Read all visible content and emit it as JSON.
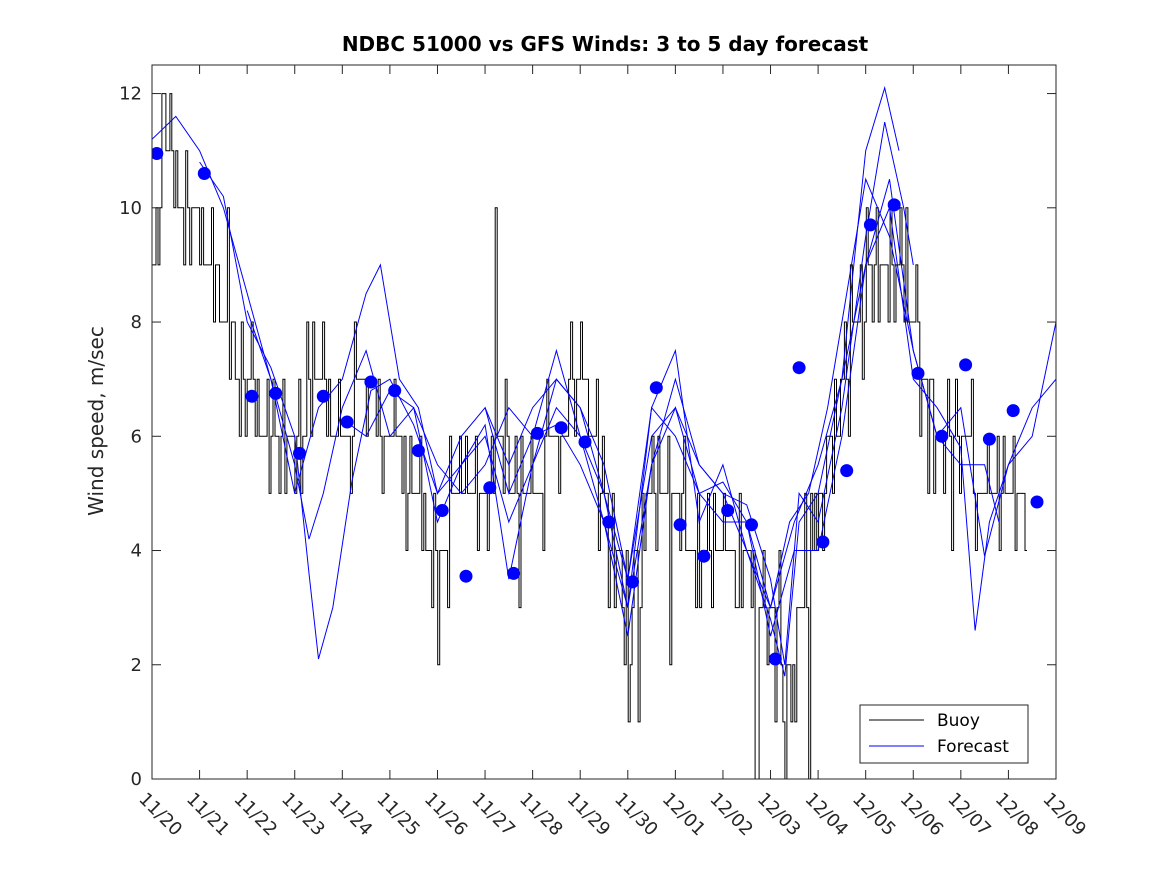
{
  "chart_data": {
    "type": "line",
    "title": "NDBC 51000 vs GFS Winds: 3 to 5 day forecast",
    "xlabel": "",
    "ylabel": "Wind speed, m/sec",
    "xlim": [
      0,
      19
    ],
    "ylim": [
      0,
      12.5
    ],
    "x_tick_labels": [
      "11/20",
      "11/21",
      "11/22",
      "11/23",
      "11/24",
      "11/25",
      "11/26",
      "11/27",
      "11/28",
      "11/29",
      "11/30",
      "12/01",
      "12/02",
      "12/03",
      "12/04",
      "12/05",
      "12/06",
      "12/07",
      "12/08",
      "12/09"
    ],
    "y_ticks": [
      0,
      2,
      4,
      6,
      8,
      10,
      12
    ],
    "legend": {
      "position": "bottom-right",
      "entries": [
        "Buoy",
        "Forecast"
      ]
    },
    "series": [
      {
        "name": "Buoy",
        "color": "#000000",
        "style": "step",
        "x_step": 0.0417,
        "anchors": [
          [
            0.0,
            9
          ],
          [
            0.25,
            11
          ],
          [
            0.8,
            10
          ],
          [
            1.2,
            9
          ],
          [
            1.5,
            8
          ],
          [
            2.0,
            7
          ],
          [
            2.4,
            6
          ],
          [
            3.0,
            6
          ],
          [
            3.5,
            7
          ],
          [
            4.0,
            6
          ],
          [
            4.5,
            7
          ],
          [
            5.0,
            6
          ],
          [
            5.5,
            5
          ],
          [
            6.0,
            4
          ],
          [
            6.5,
            5
          ],
          [
            7.0,
            5
          ],
          [
            7.3,
            6
          ],
          [
            7.7,
            5
          ],
          [
            8.0,
            5
          ],
          [
            8.5,
            6
          ],
          [
            9.0,
            7
          ],
          [
            9.5,
            5
          ],
          [
            10.0,
            3
          ],
          [
            10.5,
            5
          ],
          [
            11.0,
            5
          ],
          [
            11.5,
            4
          ],
          [
            12.0,
            4
          ],
          [
            12.5,
            4
          ],
          [
            13.0,
            3
          ],
          [
            13.4,
            2
          ],
          [
            13.8,
            4
          ],
          [
            14.3,
            6
          ],
          [
            14.8,
            8
          ],
          [
            15.3,
            9
          ],
          [
            15.7,
            9
          ],
          [
            16.0,
            8
          ],
          [
            16.5,
            6
          ],
          [
            17.0,
            6
          ],
          [
            17.5,
            5
          ],
          [
            18.0,
            5
          ],
          [
            18.4,
            5
          ]
        ],
        "spikes": [
          [
            0.25,
            12
          ],
          [
            1.6,
            10
          ],
          [
            6.0,
            2
          ],
          [
            7.2,
            10
          ],
          [
            7.7,
            3
          ],
          [
            9.0,
            8
          ],
          [
            9.6,
            3
          ],
          [
            10.0,
            1
          ],
          [
            10.2,
            1
          ],
          [
            10.9,
            2
          ],
          [
            11.5,
            3
          ],
          [
            12.3,
            3
          ],
          [
            12.7,
            0
          ],
          [
            13.1,
            1
          ],
          [
            13.3,
            0
          ],
          [
            13.5,
            1
          ],
          [
            13.8,
            0
          ],
          [
            15.0,
            10
          ],
          [
            15.5,
            10
          ],
          [
            16.3,
            5
          ],
          [
            16.8,
            4
          ],
          [
            17.8,
            4
          ],
          [
            18.4,
            4
          ]
        ]
      },
      {
        "name": "Forecast",
        "color": "#0000ff",
        "style": "line",
        "members": [
          [
            [
              0,
              11.2
            ],
            [
              0.5,
              11.6
            ],
            [
              1.0,
              11.0
            ],
            [
              1.5,
              10.0
            ],
            [
              2.0,
              8.5
            ],
            [
              2.5,
              7.0
            ],
            [
              3.0,
              5.5
            ],
            [
              3.3,
              4.2
            ],
            [
              3.6,
              5.0
            ],
            [
              4.0,
              6.5
            ],
            [
              4.5,
              7.5
            ],
            [
              5.0,
              6.0
            ],
            [
              5.5,
              6.5
            ],
            [
              6.0,
              4.5
            ],
            [
              6.5,
              5.5
            ],
            [
              7.0,
              6.0
            ],
            [
              7.5,
              4.5
            ],
            [
              8.0,
              5.5
            ],
            [
              8.5,
              7.0
            ],
            [
              9.0,
              6.5
            ],
            [
              9.5,
              5.0
            ],
            [
              10.0,
              3.0
            ],
            [
              10.5,
              5.5
            ],
            [
              11.0,
              7.0
            ],
            [
              11.5,
              5.5
            ],
            [
              12.0,
              5.0
            ],
            [
              12.5,
              4.8
            ],
            [
              13.0,
              3.5
            ],
            [
              13.3,
              2.0
            ],
            [
              13.6,
              5.0
            ],
            [
              14.0,
              4.5
            ],
            [
              14.5,
              6.5
            ],
            [
              15.0,
              9.5
            ],
            [
              15.4,
              11.5
            ],
            [
              15.8,
              10.0
            ],
            [
              16.0,
              9.0
            ]
          ],
          [
            [
              1.0,
              10.8
            ],
            [
              1.5,
              10.2
            ],
            [
              2.0,
              8.0
            ],
            [
              2.5,
              7.2
            ],
            [
              3.0,
              6.0
            ],
            [
              3.3,
              3.6
            ],
            [
              3.5,
              2.1
            ],
            [
              3.8,
              3.0
            ],
            [
              4.2,
              5.2
            ],
            [
              4.6,
              6.8
            ],
            [
              5.0,
              7.0
            ],
            [
              5.5,
              6.2
            ],
            [
              6.0,
              5.0
            ],
            [
              6.5,
              5.5
            ],
            [
              7.0,
              6.2
            ],
            [
              7.5,
              3.5
            ],
            [
              8.0,
              5.5
            ],
            [
              8.5,
              6.5
            ],
            [
              9.0,
              6.0
            ],
            [
              9.5,
              5.0
            ],
            [
              10.0,
              3.5
            ],
            [
              10.5,
              6.5
            ],
            [
              11.0,
              7.5
            ],
            [
              11.5,
              4.5
            ],
            [
              12.0,
              5.5
            ],
            [
              12.5,
              4.0
            ],
            [
              13.0,
              2.8
            ],
            [
              13.3,
              1.8
            ],
            [
              13.6,
              4.5
            ],
            [
              14.0,
              5.0
            ],
            [
              14.5,
              7.0
            ],
            [
              15.0,
              11.0
            ],
            [
              15.4,
              12.1
            ],
            [
              15.7,
              11.0
            ]
          ],
          [
            [
              2.0,
              8.2
            ],
            [
              2.5,
              7.0
            ],
            [
              3.0,
              5.0
            ],
            [
              3.5,
              6.5
            ],
            [
              4.0,
              7.0
            ],
            [
              4.5,
              8.5
            ],
            [
              4.8,
              9.0
            ],
            [
              5.2,
              7.0
            ],
            [
              5.6,
              6.5
            ],
            [
              6.0,
              5.0
            ],
            [
              6.5,
              6.0
            ],
            [
              7.0,
              6.5
            ],
            [
              7.5,
              5.0
            ],
            [
              8.0,
              6.0
            ],
            [
              8.5,
              7.5
            ],
            [
              9.0,
              6.0
            ],
            [
              9.5,
              4.5
            ],
            [
              10.0,
              2.5
            ],
            [
              10.5,
              5.5
            ],
            [
              11.0,
              6.5
            ],
            [
              11.5,
              5.0
            ],
            [
              12.0,
              4.5
            ],
            [
              12.5,
              4.5
            ],
            [
              13.0,
              3.0
            ],
            [
              13.4,
              4.5
            ],
            [
              13.8,
              5.0
            ],
            [
              14.2,
              6.5
            ],
            [
              14.6,
              8.5
            ],
            [
              15.0,
              10.5
            ],
            [
              15.5,
              9.5
            ],
            [
              16.0,
              7.5
            ],
            [
              16.5,
              6.0
            ],
            [
              17.0,
              5.5
            ],
            [
              17.5,
              5.5
            ],
            [
              17.8,
              4.5
            ]
          ],
          [
            [
              4.0,
              6.3
            ],
            [
              4.5,
              6.0
            ],
            [
              5.0,
              6.8
            ],
            [
              5.5,
              6.5
            ],
            [
              6.0,
              5.5
            ],
            [
              6.5,
              5.0
            ],
            [
              7.0,
              5.5
            ],
            [
              7.5,
              6.5
            ],
            [
              8.0,
              6.0
            ],
            [
              8.5,
              6.2
            ],
            [
              9.0,
              5.5
            ],
            [
              9.5,
              4.5
            ],
            [
              10.0,
              3.0
            ],
            [
              10.5,
              6.5
            ],
            [
              11.0,
              6.0
            ],
            [
              11.5,
              5.0
            ],
            [
              12.0,
              5.2
            ],
            [
              12.5,
              4.5
            ],
            [
              13.0,
              2.5
            ],
            [
              13.5,
              4.0
            ],
            [
              14.0,
              4.0
            ],
            [
              14.5,
              6.0
            ],
            [
              15.0,
              9.0
            ],
            [
              15.5,
              10.0
            ],
            [
              16.0,
              7.0
            ],
            [
              16.5,
              6.5
            ],
            [
              17.0,
              5.8
            ],
            [
              17.3,
              2.6
            ],
            [
              17.6,
              4.5
            ],
            [
              18.0,
              5.5
            ],
            [
              18.5,
              6.0
            ],
            [
              19.0,
              8.0
            ]
          ],
          [
            [
              7.0,
              6.5
            ],
            [
              7.5,
              5.5
            ],
            [
              8.0,
              6.5
            ],
            [
              8.5,
              7.0
            ],
            [
              9.0,
              6.5
            ],
            [
              9.5,
              5.5
            ],
            [
              10.0,
              3.5
            ],
            [
              10.5,
              6.0
            ],
            [
              11.0,
              6.5
            ],
            [
              11.5,
              5.5
            ],
            [
              12.0,
              5.0
            ],
            [
              12.5,
              4.0
            ],
            [
              13.0,
              3.0
            ],
            [
              13.5,
              4.5
            ],
            [
              14.0,
              5.5
            ],
            [
              14.5,
              7.0
            ],
            [
              15.0,
              9.0
            ],
            [
              15.5,
              10.5
            ],
            [
              16.0,
              7.5
            ],
            [
              16.5,
              6.0
            ],
            [
              17.0,
              6.5
            ],
            [
              17.5,
              3.9
            ],
            [
              18.0,
              5.5
            ],
            [
              18.5,
              6.5
            ],
            [
              19.0,
              7.0
            ]
          ]
        ],
        "markers": [
          [
            0.1,
            10.95
          ],
          [
            1.1,
            10.6
          ],
          [
            2.1,
            6.7
          ],
          [
            2.6,
            6.75
          ],
          [
            3.1,
            5.7
          ],
          [
            3.6,
            6.7
          ],
          [
            4.1,
            6.25
          ],
          [
            4.6,
            6.95
          ],
          [
            5.1,
            6.8
          ],
          [
            5.6,
            5.75
          ],
          [
            6.1,
            4.7
          ],
          [
            6.6,
            3.55
          ],
          [
            7.1,
            5.1
          ],
          [
            7.6,
            3.6
          ],
          [
            8.1,
            6.05
          ],
          [
            8.6,
            6.15
          ],
          [
            9.1,
            5.9
          ],
          [
            9.6,
            4.5
          ],
          [
            10.1,
            3.45
          ],
          [
            10.6,
            6.85
          ],
          [
            11.1,
            4.45
          ],
          [
            11.6,
            3.9
          ],
          [
            12.1,
            4.7
          ],
          [
            12.6,
            4.45
          ],
          [
            13.1,
            2.1
          ],
          [
            13.6,
            7.2
          ],
          [
            14.1,
            4.15
          ],
          [
            14.6,
            5.4
          ],
          [
            15.1,
            9.7
          ],
          [
            15.6,
            10.05
          ],
          [
            16.1,
            7.1
          ],
          [
            16.6,
            6.0
          ],
          [
            17.1,
            7.25
          ],
          [
            17.6,
            5.95
          ],
          [
            18.1,
            6.45
          ],
          [
            18.6,
            4.85
          ]
        ]
      }
    ]
  }
}
